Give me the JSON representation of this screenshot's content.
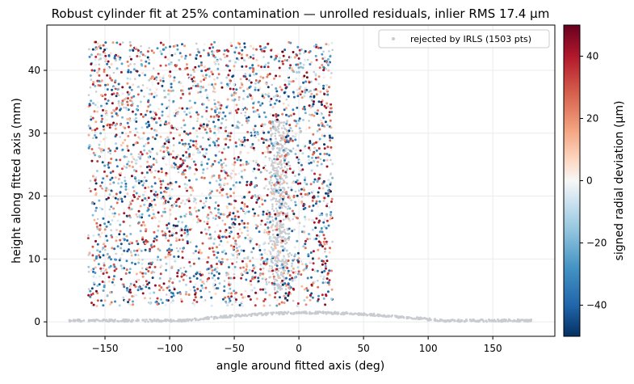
{
  "chart_data": {
    "type": "scatter",
    "title": "Robust cylinder fit at 25% contamination — unrolled residuals, inlier RMS 17.4 µm",
    "xlabel": "angle around fitted axis (deg)",
    "ylabel": "height along fitted axis (mm)",
    "xlim": [
      -195,
      198
    ],
    "ylim": [
      -2.3,
      47.2
    ],
    "xticks": [
      -150,
      -100,
      -50,
      0,
      50,
      100,
      150
    ],
    "xtick_labels": [
      "−150",
      "−100",
      "−50",
      "0",
      "50",
      "100",
      "150"
    ],
    "yticks": [
      0,
      10,
      20,
      30,
      40
    ],
    "ytick_labels": [
      "0",
      "10",
      "20",
      "30",
      "40"
    ],
    "grid": true,
    "legend": {
      "placement": "top-right",
      "entries": [
        "rejected by IRLS (1503 pts)"
      ]
    },
    "colorbar": {
      "label": "signed radial deviation (µm)",
      "range": [
        -50,
        50
      ],
      "ticks": [
        -40,
        -20,
        0,
        20,
        40
      ],
      "tick_labels": [
        "−40",
        "−20",
        "0",
        "20",
        "40"
      ],
      "colormap": "RdBu_r"
    },
    "series": [
      {
        "name": "inliers",
        "color_by": "signed radial deviation",
        "x_range": [
          -163,
          26
        ],
        "y_range": [
          2.5,
          44.5
        ],
        "sample_points": [
          [
            -160,
            40,
            35
          ],
          [
            -140,
            12,
            -30
          ],
          [
            -120,
            30,
            20
          ],
          [
            -100,
            5,
            -45
          ],
          [
            -80,
            25,
            40
          ],
          [
            -60,
            38,
            -15
          ],
          [
            -40,
            15,
            10
          ],
          [
            -20,
            28,
            -25
          ],
          [
            0,
            8,
            30
          ],
          [
            20,
            42,
            -5
          ]
        ]
      },
      {
        "name": "rejected by IRLS (1503 pts)",
        "count": 1503,
        "color": "#c8cbd0",
        "groups": [
          {
            "description": "band along angle axis",
            "x_range": [
              -178,
              180
            ],
            "y_range": [
              0,
              1.8
            ]
          },
          {
            "description": "dense cluster",
            "x_center": -15,
            "x_spread": 35,
            "y_range": [
              5,
              32
            ]
          },
          {
            "description": "scattered outliers within inlier strip",
            "x_range": [
              -163,
              26
            ],
            "y_range": [
              2.5,
              44.5
            ]
          }
        ]
      }
    ]
  }
}
